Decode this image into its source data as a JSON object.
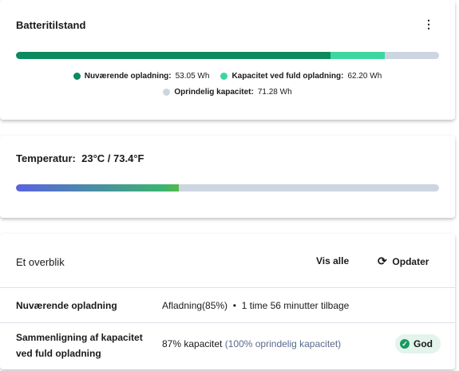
{
  "battery": {
    "title": "Batteritilstand",
    "items": [
      {
        "name": "Nuværende opladning:",
        "value": 53.05,
        "value_label": "53.05 Wh",
        "color": "#0e8a5f"
      },
      {
        "name": "Kapacitet ved fuld opladning:",
        "value": 62.2,
        "value_label": "62.20 Wh",
        "color": "#3dd6a0"
      },
      {
        "name": "Oprindelig kapacitet:",
        "value": 71.28,
        "value_label": "71.28 Wh",
        "color": "#cdd5e0"
      }
    ]
  },
  "temperature": {
    "label": "Temperatur:",
    "value": "23°C / 73.4°F"
  },
  "overview": {
    "title": "Et overblik",
    "buttons": [
      "Vis alle",
      "Opdater"
    ],
    "rows": [
      {
        "label": "Nuværende opladning",
        "main": "Afladning(85%)",
        "separator": "•",
        "secondary": "1 time 56 minutter tilbage"
      },
      {
        "label": "Sammenligning af kapacitet ved fuld opladning",
        "main": "87% kapacitet",
        "secondary": "(100% oprindelig kapacitet)",
        "badge": "God"
      }
    ]
  }
}
